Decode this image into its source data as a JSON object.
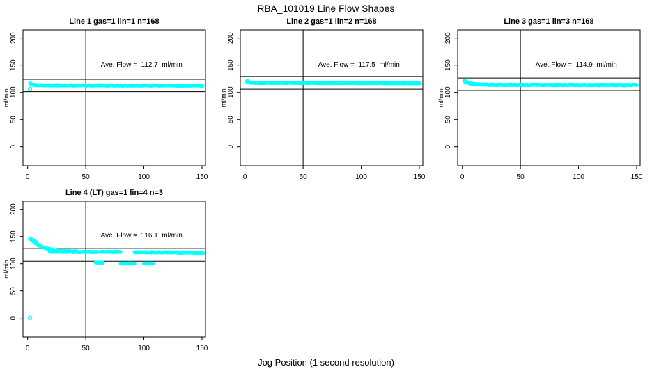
{
  "page_title": "RBA_101019  Line Flow Shapes",
  "outer_xlabel": "Jog Position (1 second resolution)",
  "colors": {
    "points": "#00FFFF",
    "axis": "#000000",
    "background": "#FFFFFF"
  },
  "chart_data": [
    {
      "type": "scatter",
      "title": "Line 1 gas=1 lin=1 n=168",
      "ylabel": "ml/min",
      "annotation": "Ave. Flow =  112.7  ml/min",
      "annotation_pos": [
        98,
        151
      ],
      "ave_flow": 112.7,
      "n": 168,
      "xlim": [
        -4,
        153
      ],
      "ylim": [
        -35,
        215
      ],
      "x_ticks": [
        0,
        50,
        100,
        150
      ],
      "y_ticks": [
        0,
        50,
        100,
        150,
        200
      ],
      "vline_x": 50,
      "hlines": [
        124.0,
        101.4
      ],
      "grid": false,
      "legend": false,
      "segments": [
        {
          "x0": 2,
          "x1": 14,
          "yStart": 116,
          "yEnd": 113,
          "shape": "decay",
          "jitter": 0.8
        },
        {
          "x0": 14,
          "x1": 150.5,
          "yStart": 113,
          "yEnd": 112.5,
          "jitter": 1.1
        }
      ],
      "points": [
        [
          2,
          106.5
        ]
      ]
    },
    {
      "type": "scatter",
      "title": "Line 2 gas=1 lin=2 n=168",
      "ylabel": "ml/min",
      "annotation": "Ave. Flow =  117.5  ml/min",
      "annotation_pos": [
        98,
        151
      ],
      "ave_flow": 117.5,
      "n": 168,
      "xlim": [
        -4,
        153
      ],
      "ylim": [
        -35,
        215
      ],
      "x_ticks": [
        0,
        50,
        100,
        150
      ],
      "y_ticks": [
        0,
        50,
        100,
        150,
        200
      ],
      "vline_x": 50,
      "hlines": [
        129.3,
        105.8
      ],
      "grid": false,
      "legend": false,
      "segments": [
        {
          "x0": 2,
          "x1": 10,
          "yStart": 119.5,
          "yEnd": 117.5,
          "shape": "decay",
          "jitter": 0.7
        },
        {
          "x0": 10,
          "x1": 150.5,
          "yStart": 117.5,
          "yEnd": 117,
          "jitter": 1.1
        }
      ],
      "points": [
        [
          2,
          120.5
        ]
      ]
    },
    {
      "type": "scatter",
      "title": "Line 3 gas=1 lin=3 n=168",
      "ylabel": "ml/min",
      "annotation": "Ave. Flow =  114.9  ml/min",
      "annotation_pos": [
        98,
        151
      ],
      "ave_flow": 114.9,
      "n": 168,
      "xlim": [
        -4,
        153
      ],
      "ylim": [
        -35,
        215
      ],
      "x_ticks": [
        0,
        50,
        100,
        150
      ],
      "y_ticks": [
        0,
        50,
        100,
        150,
        200
      ],
      "vline_x": 50,
      "hlines": [
        126.4,
        103.4
      ],
      "grid": false,
      "legend": false,
      "segments": [
        {
          "x0": 2,
          "x1": 22,
          "yStart": 120,
          "yEnd": 114.5,
          "shape": "decay",
          "jitter": 0.9
        },
        {
          "x0": 22,
          "x1": 150.5,
          "yStart": 114,
          "yEnd": 113.5,
          "jitter": 1.5
        }
      ],
      "points": [
        [
          2,
          121.5
        ]
      ]
    },
    {
      "type": "scatter",
      "title": "Line 4 (LT) gas=1 lin=4 n=3",
      "ylabel": "ml/min",
      "annotation": "Ave. Flow =  116.1  ml/min",
      "annotation_pos": [
        98,
        152
      ],
      "ave_flow": 116.1,
      "n": 3,
      "xlim": [
        -4,
        153
      ],
      "ylim": [
        -35,
        215
      ],
      "x_ticks": [
        0,
        50,
        100,
        150
      ],
      "y_ticks": [
        0,
        50,
        100,
        150,
        200
      ],
      "vline_x": 50,
      "hlines": [
        127.7,
        104.5
      ],
      "grid": false,
      "legend": false,
      "segments": [
        {
          "x0": 2,
          "x1": 7,
          "yStart": 146,
          "yEnd": 141,
          "jitter": 1.6
        },
        {
          "x0": 3,
          "x1": 42,
          "yStart": 145,
          "yEnd": 122,
          "shape": "decay",
          "jitter": 1.0
        },
        {
          "x0": 19,
          "x1": 48.5,
          "yStart": 122,
          "yEnd": 121.5,
          "jitter": 0.9
        },
        {
          "x0": 51,
          "x1": 60.5,
          "yStart": 121.5,
          "yEnd": 121.5,
          "jitter": 0.9
        },
        {
          "x0": 63,
          "x1": 80,
          "yStart": 122,
          "yEnd": 121.5,
          "jitter": 1.1
        },
        {
          "x0": 92,
          "x1": 103,
          "yStart": 121,
          "yEnd": 121,
          "jitter": 0.9
        },
        {
          "x0": 105,
          "x1": 126,
          "yStart": 121,
          "yEnd": 120.5,
          "jitter": 1.1
        },
        {
          "x0": 127,
          "x1": 151,
          "yStart": 120.5,
          "yEnd": 120,
          "jitter": 1.3
        },
        {
          "x0": 58.5,
          "x1": 65,
          "yStart": 102,
          "yEnd": 102,
          "jitter": 0.7
        },
        {
          "x0": 80,
          "x1": 92,
          "yStart": 100.5,
          "yEnd": 100.5,
          "jitter": 0.7
        },
        {
          "x0": 100,
          "x1": 108,
          "yStart": 100.5,
          "yEnd": 100.5,
          "jitter": 0.7
        }
      ],
      "points": [
        [
          2,
          0
        ]
      ]
    }
  ]
}
